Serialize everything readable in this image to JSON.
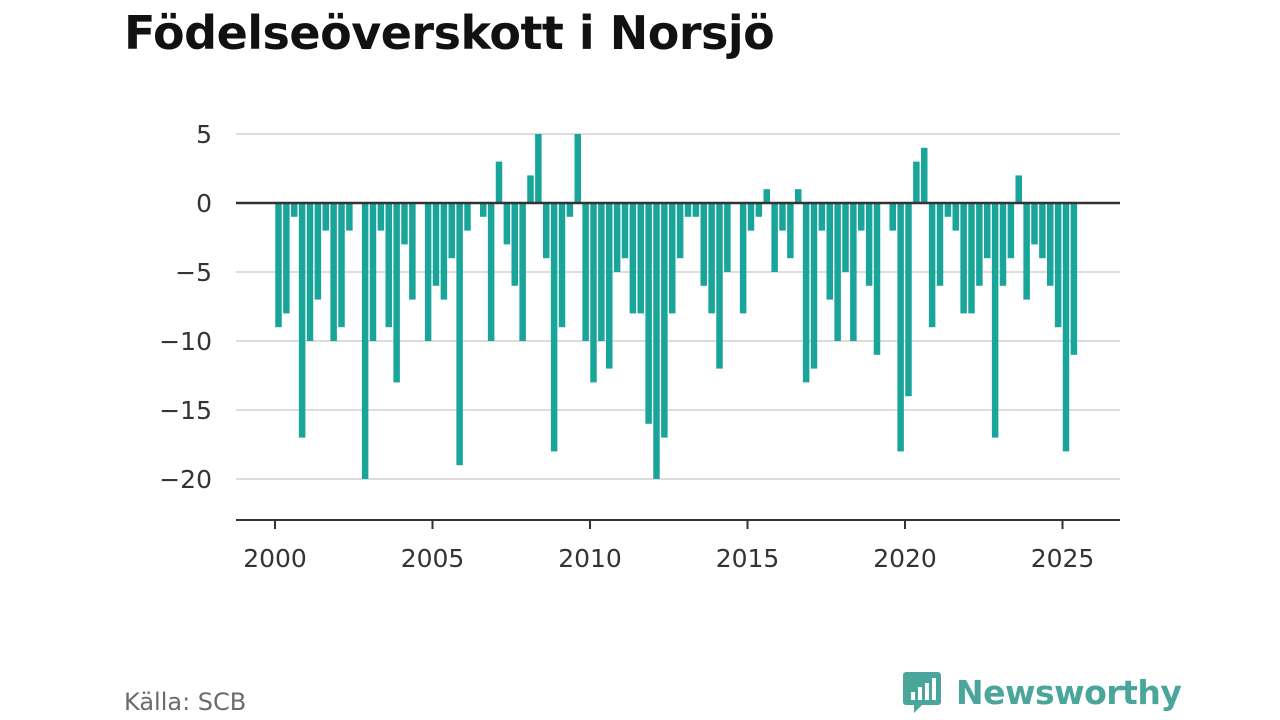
{
  "title": "Födelseöverskott i Norsjö",
  "source": "Källa: SCB",
  "brand": "Newsworthy",
  "colors": {
    "bar": "#1aa59a",
    "grid": "#dddddd",
    "zero": "#333333",
    "brand": "#4aa69a"
  },
  "chart_data": {
    "type": "bar",
    "title": "Födelseöverskott i Norsjö",
    "xlabel": "",
    "ylabel": "",
    "ylim": [
      -23,
      5.5
    ],
    "xlim": [
      1998.9,
      2027.1
    ],
    "yticks": [
      5,
      0,
      -5,
      -10,
      -15,
      -20
    ],
    "ytick_labels": [
      "5",
      "0",
      "−5",
      "−10",
      "−15",
      "−20"
    ],
    "xticks": [
      2000,
      2005,
      2010,
      2015,
      2020,
      2025
    ],
    "xtick_labels": [
      "2000",
      "2005",
      "2010",
      "2015",
      "2020",
      "2025"
    ],
    "grid": true,
    "frequency": "quarterly",
    "x_start": 2000.0,
    "values": [
      -9,
      -8,
      -1,
      -17,
      -10,
      -7,
      -2,
      -10,
      -9,
      -2,
      0,
      -20,
      -10,
      -2,
      -9,
      -13,
      -3,
      -7,
      0,
      -10,
      -6,
      -7,
      -4,
      -19,
      -2,
      0,
      -1,
      -10,
      3,
      -3,
      -6,
      -10,
      2,
      5,
      -4,
      -18,
      -9,
      -1,
      5,
      -10,
      -13,
      -10,
      -12,
      -5,
      -4,
      -8,
      -8,
      -16,
      -20,
      -17,
      -8,
      -4,
      -1,
      -1,
      -6,
      -8,
      -12,
      -5,
      0,
      -8,
      -2,
      -1,
      1,
      -5,
      -2,
      -4,
      1,
      -13,
      -12,
      -2,
      -7,
      -10,
      -5,
      -10,
      -2,
      -6,
      -11,
      0,
      -2,
      -18,
      -14,
      3,
      4,
      -9,
      -6,
      -1,
      -2,
      -8,
      -8,
      -6,
      -4,
      -17,
      -6,
      -4,
      2,
      -7,
      -3,
      -4,
      -6,
      -9,
      -18,
      -11
    ]
  }
}
